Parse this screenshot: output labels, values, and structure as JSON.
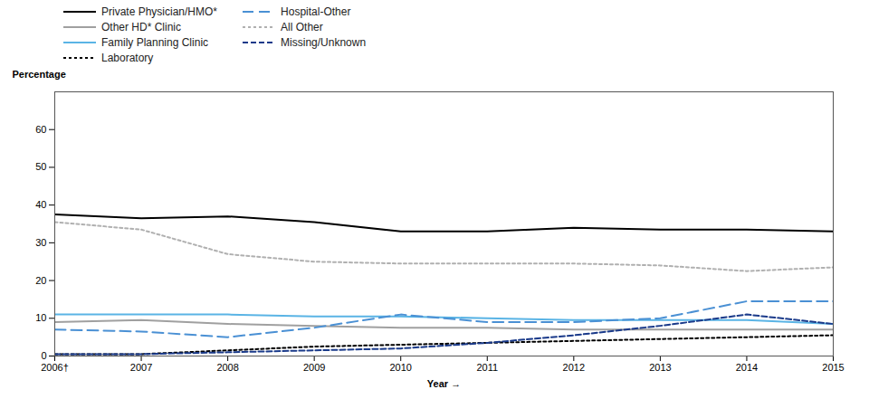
{
  "chart_data": {
    "type": "line",
    "xlabel": "Year",
    "ylabel": "Percentage",
    "x": [
      2006,
      2007,
      2008,
      2009,
      2010,
      2011,
      2012,
      2013,
      2014,
      2015
    ],
    "series": [
      {
        "name": "Private Physician/HMO*",
        "color": "#000000",
        "line_style": "solid",
        "values": [
          37.5,
          36.5,
          37.0,
          35.5,
          33.0,
          33.0,
          34.0,
          33.5,
          33.5,
          33.0
        ]
      },
      {
        "name": "Other HD* Clinic",
        "color": "#a0a0a0",
        "line_style": "solid",
        "values": [
          9.0,
          9.5,
          8.5,
          8.0,
          7.5,
          7.5,
          7.0,
          7.0,
          7.0,
          7.0
        ]
      },
      {
        "name": "Family Planning Clinic",
        "color": "#5ab4e5",
        "line_style": "solid",
        "values": [
          11.0,
          11.0,
          11.0,
          10.5,
          10.5,
          10.0,
          9.5,
          9.5,
          9.5,
          8.5
        ]
      },
      {
        "name": "Laboratory",
        "color": "#000000",
        "line_style": "densely_dotted",
        "values": [
          0.5,
          0.5,
          1.5,
          2.5,
          3.0,
          3.5,
          4.0,
          4.5,
          5.0,
          5.5
        ]
      },
      {
        "name": "Hospital-Other",
        "color": "#4a90d4",
        "line_style": "long_dashed",
        "values": [
          7.0,
          6.5,
          5.0,
          7.5,
          11.0,
          9.0,
          9.0,
          10.0,
          14.5,
          14.5
        ]
      },
      {
        "name": "All Other",
        "color": "#b0b0b0",
        "line_style": "densely_dotted",
        "values": [
          35.5,
          33.5,
          27.0,
          25.0,
          24.5,
          24.5,
          24.5,
          24.0,
          22.5,
          23.5
        ]
      },
      {
        "name": "Missing/Unknown",
        "color": "#1a3a8a",
        "line_style": "densely_dashed",
        "values": [
          0.5,
          0.5,
          1.0,
          1.5,
          2.0,
          3.5,
          5.5,
          8.0,
          11.0,
          8.5
        ]
      }
    ],
    "xlim": [
      2006,
      2015
    ],
    "xticks": [
      {
        "value": 2006,
        "label": "2006†"
      },
      2007,
      2008,
      2009,
      2010,
      2011,
      2012,
      2013,
      2014,
      2015
    ],
    "ylim": [
      0,
      70
    ],
    "yticks": [
      0,
      10,
      20,
      30,
      40,
      50,
      60
    ],
    "grid": false,
    "legend": "upper left"
  }
}
